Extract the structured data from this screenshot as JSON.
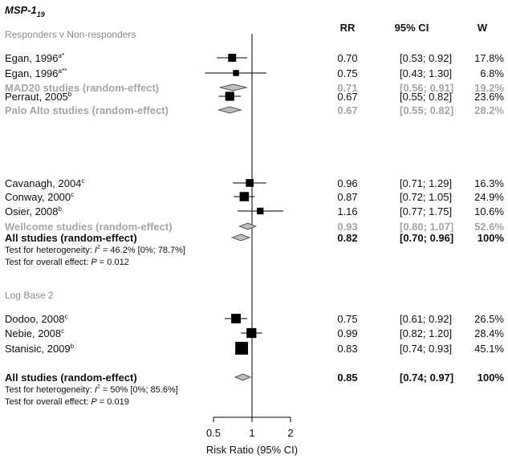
{
  "chart_data": {
    "type": "forest",
    "title_main": "MSP-1",
    "title_sub": "19",
    "columns": {
      "rr": "RR",
      "ci": "95% CI",
      "w": "W"
    },
    "xaxis": {
      "label": "Risk Ratio (95% CI)",
      "scale": "log2",
      "ticks": [
        0.5,
        1,
        2
      ],
      "tick_labels": [
        "0.5",
        "1",
        "2"
      ],
      "reference": 1
    },
    "panels": [
      {
        "header": "Responders v Non-responders",
        "groups": [
          {
            "studies": [
              {
                "name": "Egan, 1996",
                "sup": "a*",
                "rr": 0.7,
                "lo": 0.53,
                "hi": 0.92,
                "rr_text": "0.70",
                "ci_text": "[0.53; 0.92]",
                "w_text": "17.8%",
                "weight": 17.8
              },
              {
                "name": "Egan, 1996",
                "sup": "a**",
                "rr": 0.75,
                "lo": 0.43,
                "hi": 1.3,
                "rr_text": "0.75",
                "ci_text": "[0.43; 1.30]",
                "w_text": "6.8%",
                "weight": 6.8
              }
            ],
            "summary": {
              "name": "MAD20 studies (random-effect)",
              "rr": 0.71,
              "lo": 0.56,
              "hi": 0.91,
              "rr_text": "0.71",
              "ci_text": "[0.56; 0.91]",
              "w_text": "19.2%"
            }
          },
          {
            "studies": [
              {
                "name": "Perraut, 2005",
                "sup": "b",
                "rr": 0.67,
                "lo": 0.55,
                "hi": 0.82,
                "rr_text": "0.67",
                "ci_text": "[0.55; 0.82]",
                "w_text": "23.6%",
                "weight": 23.6
              }
            ],
            "summary": {
              "name": "Palo Alto studies (random-effect)",
              "rr": 0.67,
              "lo": 0.55,
              "hi": 0.82,
              "rr_text": "0.67",
              "ci_text": "[0.55; 0.82]",
              "w_text": "28.2%"
            }
          },
          {
            "studies": [
              {
                "name": "Cavanagh, 2004",
                "sup": "c",
                "rr": 0.96,
                "lo": 0.71,
                "hi": 1.29,
                "rr_text": "0.96",
                "ci_text": "[0.71; 1.29]",
                "w_text": "16.3%",
                "weight": 16.3
              },
              {
                "name": "Conway, 2000",
                "sup": "c",
                "rr": 0.87,
                "lo": 0.72,
                "hi": 1.05,
                "rr_text": "0.87",
                "ci_text": "[0.72; 1.05]",
                "w_text": "24.9%",
                "weight": 24.9
              },
              {
                "name": "Osier, 2008",
                "sup": "b",
                "rr": 1.16,
                "lo": 0.77,
                "hi": 1.75,
                "rr_text": "1.16",
                "ci_text": "[0.77; 1.75]",
                "w_text": "10.6%",
                "weight": 10.6
              }
            ],
            "summary": {
              "name": "Wellcome studies (random-effect)",
              "rr": 0.93,
              "lo": 0.8,
              "hi": 1.07,
              "rr_text": "0.93",
              "ci_text": "[0.80; 1.07]",
              "w_text": "52.6%"
            }
          }
        ],
        "overall": {
          "name": "All studies (random-effect)",
          "rr": 0.82,
          "lo": 0.7,
          "hi": 0.96,
          "rr_text": "0.82",
          "ci_text": "[0.70; 0.96]",
          "w_text": "100%",
          "het_label": "Test for heterogeneity: ",
          "het_i2": "I",
          "het_sup": "2",
          "het_value": " = 46.2% [0%; 78.7%]",
          "eff_label": "Test for overall effect: ",
          "eff_p": "P",
          "eff_value": " = 0.012"
        }
      },
      {
        "header": "Log Base 2",
        "groups": [
          {
            "studies": [
              {
                "name": "Dodoo, 2008",
                "sup": "c",
                "rr": 0.75,
                "lo": 0.61,
                "hi": 0.92,
                "rr_text": "0.75",
                "ci_text": "[0.61; 0.92]",
                "w_text": "26.5%",
                "weight": 26.5
              },
              {
                "name": "Nebie, 2008",
                "sup": "c",
                "rr": 0.99,
                "lo": 0.82,
                "hi": 1.2,
                "rr_text": "0.99",
                "ci_text": "[0.82; 1.20]",
                "w_text": "28.4%",
                "weight": 28.4
              },
              {
                "name": "Stanisic, 2009",
                "sup": "b",
                "rr": 0.83,
                "lo": 0.74,
                "hi": 0.93,
                "rr_text": "0.83",
                "ci_text": "[0.74; 0.93]",
                "w_text": "45.1%",
                "weight": 45.1
              }
            ]
          }
        ],
        "overall": {
          "name": "All studies (random-effect)",
          "rr": 0.85,
          "lo": 0.74,
          "hi": 0.97,
          "rr_text": "0.85",
          "ci_text": "[0.74; 0.97]",
          "w_text": "100%",
          "het_label": "Test for heterogeneity: ",
          "het_i2": "I",
          "het_sup": "2",
          "het_value": " = 50% [0%; 85.6%]",
          "eff_label": "Test for overall effect: ",
          "eff_p": "P",
          "eff_value": " = 0.019"
        }
      }
    ]
  },
  "colors": {
    "text": "#111111",
    "summary_text": "#a6a6a6",
    "header_text": "#8c8c8c",
    "diamond_fill": "#bdbdbd",
    "diamond_stroke": "#555555",
    "marker": "#000000"
  }
}
